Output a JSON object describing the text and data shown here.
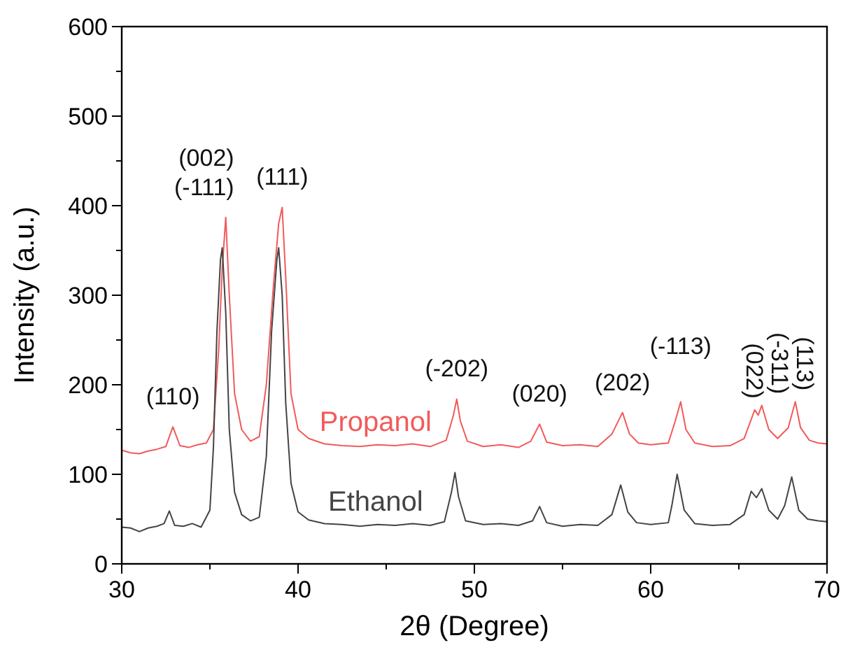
{
  "chart_data": {
    "type": "line",
    "xlabel": "2θ (Degree)",
    "ylabel": "Intensity (a.u.)",
    "xlim": [
      30,
      70
    ],
    "xticks": [
      30,
      {
        "value": 35,
        "label": null
      },
      40,
      {
        "value": 45,
        "label": null
      },
      50,
      {
        "value": 55,
        "label": null
      },
      60,
      {
        "value": 65,
        "label": null
      },
      70
    ],
    "ylim": [
      0,
      600
    ],
    "yticks": [
      0,
      {
        "value": 50,
        "label": null
      },
      100,
      {
        "value": 150,
        "label": null
      },
      200,
      {
        "value": 250,
        "label": null
      },
      300,
      {
        "value": 350,
        "label": null
      },
      400,
      {
        "value": 450,
        "label": null
      },
      500,
      {
        "value": 550,
        "label": null
      },
      600
    ],
    "series": [
      {
        "name": "Propanol",
        "color": "#f25a5a",
        "x": [
          30,
          30.5,
          31,
          31.5,
          32,
          32.5,
          32.9,
          33.3,
          33.8,
          34.3,
          34.8,
          35.2,
          35.5,
          35.7,
          35.9,
          36.1,
          36.4,
          36.8,
          37.3,
          37.8,
          38.2,
          38.6,
          38.9,
          39.1,
          39.3,
          39.6,
          40,
          40.6,
          41.5,
          42.5,
          43.5,
          44.5,
          45.5,
          46.5,
          47.5,
          48.4,
          48.8,
          49,
          49.2,
          49.6,
          50.5,
          51.5,
          52.5,
          53.2,
          53.7,
          54.1,
          55,
          56,
          57,
          57.8,
          58.4,
          58.8,
          59.3,
          60,
          61,
          61.4,
          61.7,
          62,
          62.5,
          63.5,
          64.5,
          65.3,
          65.9,
          66.1,
          66.3,
          66.7,
          67.2,
          67.8,
          68.2,
          68.5,
          69,
          69.5,
          70
        ],
        "values": [
          127,
          124,
          123,
          126,
          128,
          131,
          153,
          132,
          130,
          133,
          135,
          150,
          240,
          330,
          387,
          300,
          190,
          150,
          137,
          142,
          200,
          310,
          380,
          398,
          320,
          190,
          150,
          140,
          134,
          132,
          131,
          133,
          132,
          134,
          131,
          138,
          165,
          184,
          160,
          137,
          131,
          133,
          130,
          137,
          156,
          136,
          132,
          133,
          131,
          145,
          169,
          145,
          135,
          133,
          135,
          160,
          181,
          150,
          135,
          131,
          132,
          140,
          172,
          166,
          177,
          150,
          140,
          152,
          181,
          152,
          138,
          135,
          134
        ]
      },
      {
        "name": "Ethanol",
        "color": "#444444",
        "x": [
          30,
          30.5,
          31,
          31.5,
          32,
          32.4,
          32.7,
          33,
          33.5,
          34,
          34.5,
          35,
          35.2,
          35.4,
          35.6,
          35.7,
          35.9,
          36.1,
          36.4,
          36.8,
          37.3,
          37.8,
          38.2,
          38.5,
          38.8,
          38.9,
          39.1,
          39.3,
          39.6,
          40,
          40.6,
          41.5,
          42.5,
          43.5,
          44.5,
          45.5,
          46.5,
          47.5,
          48.3,
          48.7,
          48.9,
          49.1,
          49.5,
          50.5,
          51.5,
          52.5,
          53.3,
          53.7,
          54.1,
          55,
          56,
          57,
          57.8,
          58.3,
          58.7,
          59.2,
          60,
          61,
          61.2,
          61.5,
          61.9,
          62.5,
          63.5,
          64.5,
          65.3,
          65.7,
          66,
          66.3,
          66.7,
          67.2,
          67.6,
          68,
          68.4,
          68.9,
          69.5,
          70
        ],
        "values": [
          41,
          40,
          36,
          40,
          42,
          45,
          59,
          43,
          42,
          45,
          41,
          60,
          130,
          260,
          340,
          353,
          280,
          150,
          80,
          55,
          48,
          52,
          120,
          260,
          340,
          353,
          300,
          180,
          90,
          58,
          49,
          45,
          44,
          42,
          44,
          43,
          45,
          43,
          47,
          80,
          102,
          75,
          48,
          44,
          45,
          43,
          48,
          64,
          46,
          42,
          44,
          43,
          55,
          88,
          58,
          46,
          44,
          46,
          65,
          100,
          60,
          45,
          43,
          44,
          55,
          81,
          74,
          84,
          60,
          50,
          65,
          97,
          60,
          50,
          48,
          47
        ]
      }
    ],
    "annotations": [
      {
        "text": "(110)",
        "x": 32.9,
        "y": 153
      },
      {
        "text": "(002)",
        "x": 35.9,
        "y": 387
      },
      {
        "text": "(-111)",
        "x": 35.9,
        "y": 387
      },
      {
        "text": "(111)",
        "x": 39.1,
        "y": 398
      },
      {
        "text": "(-202)",
        "x": 49,
        "y": 184
      },
      {
        "text": "(020)",
        "x": 53.7,
        "y": 156
      },
      {
        "text": "(202)",
        "x": 58.4,
        "y": 169
      },
      {
        "text": "(-113)",
        "x": 61.7,
        "y": 181
      },
      {
        "text": "(022)",
        "x": 65.9,
        "y": 172
      },
      {
        "text": "(-311)",
        "x": 66.3,
        "y": 177
      },
      {
        "text": "(113)",
        "x": 68.2,
        "y": 181
      }
    ]
  }
}
